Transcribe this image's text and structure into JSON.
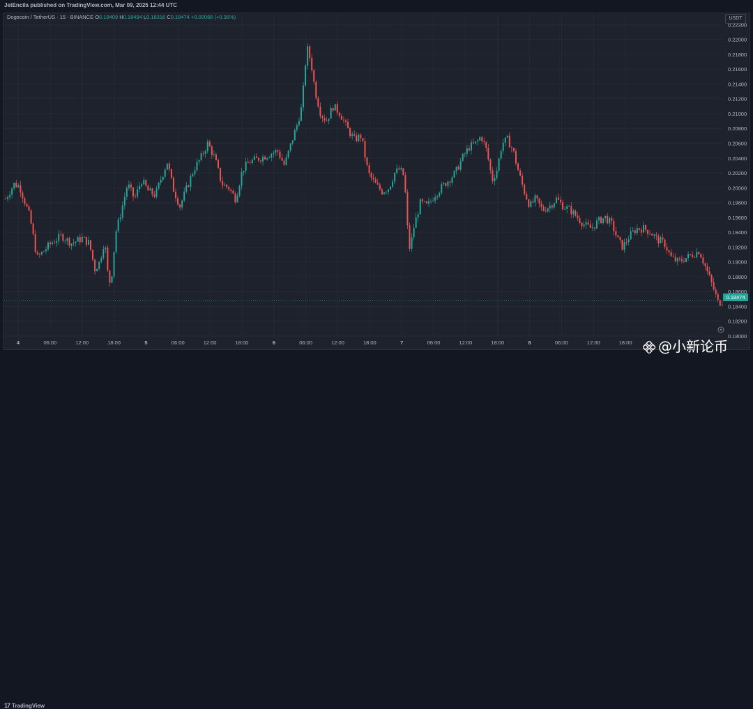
{
  "header": {
    "publisher_line": "JetEncila published on TradingView.com, Mar 09, 2025 12:44 UTC"
  },
  "legend": {
    "symbol": "Dogecoin / TetherUS · 15 · BINANCE",
    "o_label": "O",
    "o": "0.18409",
    "h_label": "H",
    "h": "0.18494",
    "l_label": "L",
    "l": "0.18316",
    "c_label": "C",
    "c": "0.18474",
    "change": "+0.00066 (+0.36%)"
  },
  "currency": "USDT",
  "last_price_label": "0.18474",
  "footer": {
    "brand": "TradingView",
    "watermark": "@小新论币"
  },
  "colors": {
    "up": "#26a69a",
    "down": "#ef5350",
    "background": "#1e222d",
    "grid": "#2a2e39"
  },
  "chart_data": {
    "type": "candlestick",
    "interval": "15",
    "exchange": "BINANCE",
    "ylim": [
      0.18,
      0.2225
    ],
    "y_ticks": [
      "0.22200",
      "0.22000",
      "0.21800",
      "0.21600",
      "0.21400",
      "0.21200",
      "0.21000",
      "0.20800",
      "0.20600",
      "0.20400",
      "0.20200",
      "0.20000",
      "0.19800",
      "0.19600",
      "0.19400",
      "0.19200",
      "0.19000",
      "0.18800",
      "0.18600",
      "0.18400",
      "0.18200",
      "0.18000"
    ],
    "x_ticks": [
      "4",
      "06:00",
      "12:00",
      "18:00",
      "5",
      "06:00",
      "12:00",
      "18:00",
      "6",
      "06:00",
      "12:00",
      "18:00",
      "7",
      "06:00",
      "12:00",
      "18:00",
      "8",
      "06:00",
      "12:00",
      "18:00"
    ],
    "last_price": 0.18474,
    "price_path": [
      [
        0,
        0.1985
      ],
      [
        8,
        0.1998
      ],
      [
        12,
        0.2005
      ],
      [
        20,
        0.2002
      ],
      [
        28,
        0.198
      ],
      [
        35,
        0.196
      ],
      [
        45,
        0.1905
      ],
      [
        55,
        0.1915
      ],
      [
        65,
        0.1925
      ],
      [
        80,
        0.1935
      ],
      [
        95,
        0.1925
      ],
      [
        110,
        0.1932
      ],
      [
        120,
        0.1925
      ],
      [
        128,
        0.189
      ],
      [
        135,
        0.19
      ],
      [
        142,
        0.193
      ],
      [
        148,
        0.187
      ],
      [
        152,
        0.188
      ],
      [
        158,
        0.194
      ],
      [
        165,
        0.1965
      ],
      [
        175,
        0.2005
      ],
      [
        185,
        0.1985
      ],
      [
        195,
        0.201
      ],
      [
        205,
        0.1995
      ],
      [
        215,
        0.199
      ],
      [
        222,
        0.201
      ],
      [
        232,
        0.2035
      ],
      [
        240,
        0.2
      ],
      [
        250,
        0.1975
      ],
      [
        260,
        0.2
      ],
      [
        270,
        0.2025
      ],
      [
        280,
        0.204
      ],
      [
        290,
        0.206
      ],
      [
        300,
        0.204
      ],
      [
        310,
        0.2005
      ],
      [
        320,
        0.2
      ],
      [
        330,
        0.1985
      ],
      [
        340,
        0.2025
      ],
      [
        350,
        0.2035
      ],
      [
        365,
        0.204
      ],
      [
        378,
        0.2045
      ],
      [
        390,
        0.205
      ],
      [
        400,
        0.203
      ],
      [
        408,
        0.2055
      ],
      [
        418,
        0.2085
      ],
      [
        425,
        0.211
      ],
      [
        432,
        0.219
      ],
      [
        438,
        0.217
      ],
      [
        444,
        0.213
      ],
      [
        452,
        0.21
      ],
      [
        460,
        0.209
      ],
      [
        470,
        0.211
      ],
      [
        480,
        0.21
      ],
      [
        490,
        0.208
      ],
      [
        500,
        0.2065
      ],
      [
        510,
        0.207
      ],
      [
        520,
        0.202
      ],
      [
        530,
        0.2005
      ],
      [
        540,
        0.1995
      ],
      [
        550,
        0.2
      ],
      [
        558,
        0.202
      ],
      [
        565,
        0.2025
      ],
      [
        572,
        0.2015
      ],
      [
        576,
        0.195
      ],
      [
        580,
        0.1915
      ],
      [
        585,
        0.1945
      ],
      [
        595,
        0.198
      ],
      [
        605,
        0.1975
      ],
      [
        615,
        0.199
      ],
      [
        625,
        0.2
      ],
      [
        635,
        0.201
      ],
      [
        645,
        0.202
      ],
      [
        655,
        0.204
      ],
      [
        665,
        0.2055
      ],
      [
        675,
        0.206
      ],
      [
        682,
        0.207
      ],
      [
        690,
        0.205
      ],
      [
        698,
        0.201
      ],
      [
        705,
        0.2025
      ],
      [
        712,
        0.206
      ],
      [
        720,
        0.2065
      ],
      [
        728,
        0.205
      ],
      [
        736,
        0.202
      ],
      [
        744,
        0.1995
      ],
      [
        752,
        0.1975
      ],
      [
        760,
        0.1985
      ],
      [
        770,
        0.197
      ],
      [
        780,
        0.1975
      ],
      [
        790,
        0.1985
      ],
      [
        800,
        0.1975
      ],
      [
        810,
        0.197
      ],
      [
        820,
        0.196
      ],
      [
        830,
        0.195
      ],
      [
        840,
        0.1945
      ],
      [
        850,
        0.1955
      ],
      [
        860,
        0.196
      ],
      [
        870,
        0.195
      ],
      [
        878,
        0.193
      ],
      [
        885,
        0.192
      ],
      [
        895,
        0.1935
      ],
      [
        905,
        0.1945
      ],
      [
        915,
        0.1945
      ],
      [
        925,
        0.194
      ],
      [
        935,
        0.193
      ],
      [
        945,
        0.1925
      ],
      [
        955,
        0.1905
      ],
      [
        965,
        0.19
      ],
      [
        975,
        0.1905
      ],
      [
        985,
        0.191
      ],
      [
        995,
        0.1915
      ],
      [
        1005,
        0.189
      ],
      [
        1015,
        0.1865
      ],
      [
        1022,
        0.1845
      ],
      [
        1030,
        0.18474
      ]
    ]
  }
}
